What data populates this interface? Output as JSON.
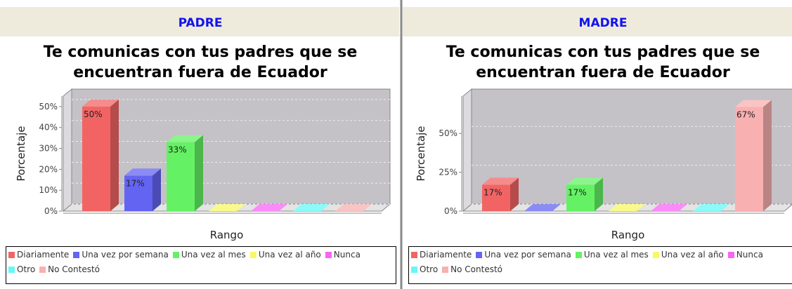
{
  "chart_data": [
    {
      "header": "PADRE",
      "type": "bar",
      "title": "Te comunicas con tus padres que se encuentran fuera de Ecuador",
      "x_label": "Rango",
      "y_label": "Porcentaje",
      "categories": [
        "Diariamente",
        "Una vez por semana",
        "Una vez al mes",
        "Una vez al año",
        "Nunca",
        "Otro",
        "No Contestó"
      ],
      "values": [
        50,
        17,
        33,
        0,
        0,
        0,
        0
      ],
      "value_labels": [
        "50%",
        "17%",
        "33%",
        null,
        null,
        null,
        null
      ],
      "colors": [
        "#f26464",
        "#6464f2",
        "#64f264",
        "#f8f864",
        "#f864f8",
        "#64f8f8",
        "#f8b0b0"
      ],
      "ylim": [
        0,
        55
      ],
      "yticks": [
        {
          "value": 0,
          "label": "0%"
        },
        {
          "value": 10,
          "label": "10%"
        },
        {
          "value": 20,
          "label": "20%"
        },
        {
          "value": 30,
          "label": "30%"
        },
        {
          "value": 40,
          "label": "40%"
        },
        {
          "value": 50,
          "label": "50%"
        }
      ],
      "grid": true
    },
    {
      "header": "MADRE",
      "type": "bar",
      "title": "Te comunicas con tus padres que se encuentran fuera de Ecuador",
      "x_label": "Rango",
      "y_label": "Porcentaje",
      "categories": [
        "Diariamente",
        "Una vez por semana",
        "Una vez al mes",
        "Una vez al año",
        "Nunca",
        "Otro",
        "No Contestó"
      ],
      "values": [
        17,
        0,
        17,
        0,
        0,
        0,
        67
      ],
      "value_labels": [
        "17%",
        null,
        "17%",
        null,
        null,
        null,
        "67%"
      ],
      "colors": [
        "#f26464",
        "#6464f2",
        "#64f264",
        "#f8f864",
        "#f864f8",
        "#64f8f8",
        "#f8b0b0"
      ],
      "ylim": [
        0,
        74
      ],
      "yticks": [
        {
          "value": 0,
          "label": "0%"
        },
        {
          "value": 25,
          "label": "25%"
        },
        {
          "value": 50,
          "label": "50%"
        }
      ],
      "grid": true
    }
  ]
}
